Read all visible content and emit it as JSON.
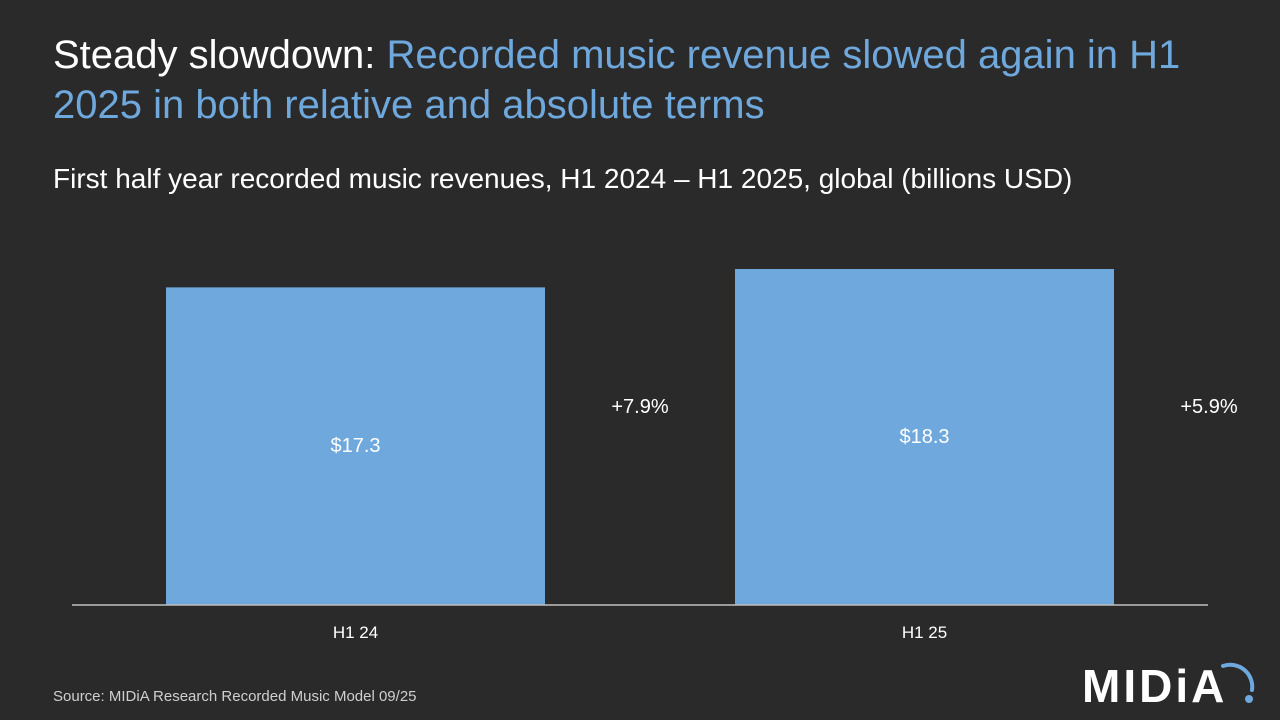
{
  "header": {
    "title_lead": "Steady slowdown:",
    "title_highlight": "Recorded music revenue slowed again in H1 2025 in both relative and absolute terms",
    "subtitle": "First half year recorded music revenues, H1 2024 – H1 2025, global (billions USD)"
  },
  "footer": {
    "source": "Source: MIDiA Research Recorded Music Model 09/25",
    "logo_text": "MIDiA"
  },
  "colors": {
    "bar": "#6fa8dc",
    "accent": "#6fa8dc",
    "background": "#2a2a2b",
    "axis": "#bfbfbf"
  },
  "chart_data": {
    "type": "bar",
    "categories": [
      "H1 24",
      "H1 25"
    ],
    "values": [
      17.3,
      18.3
    ],
    "value_labels": [
      "$17.3",
      "$18.3"
    ],
    "growth_labels": [
      "+7.9%",
      "+5.9%"
    ],
    "title": "First half year recorded music revenues, H1 2024 – H1 2025, global (billions USD)",
    "xlabel": "",
    "ylabel": "",
    "ylim": [
      0,
      18.3
    ],
    "grid": false,
    "legend": "none"
  }
}
